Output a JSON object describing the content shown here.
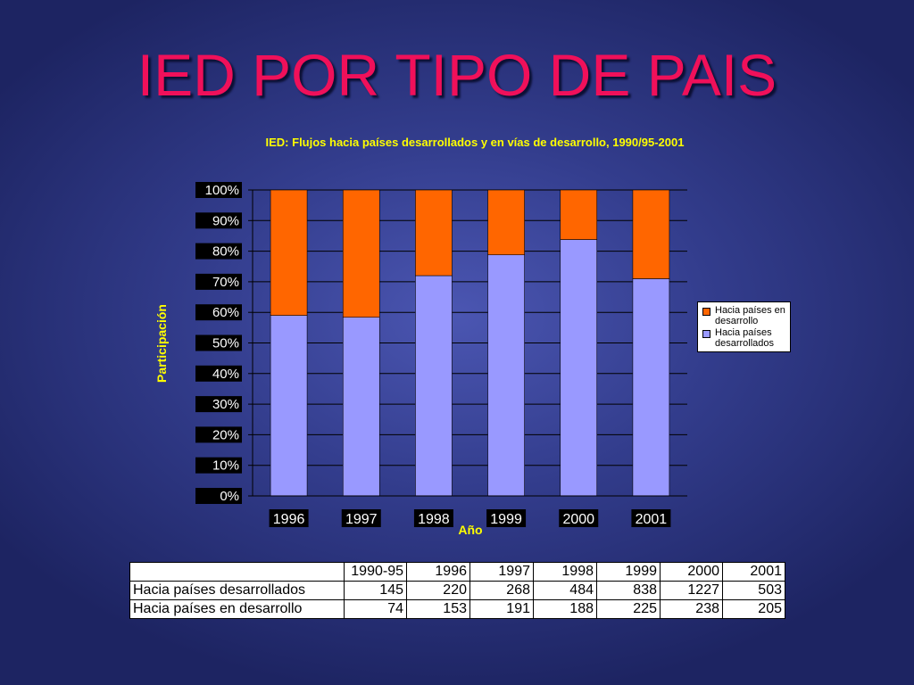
{
  "slide": {
    "title": "IED POR TIPO DE PAIS"
  },
  "chart_data": {
    "type": "bar",
    "stacked": "percent",
    "title": "IED: Flujos hacia países desarrollados y en vías de desarrollo, 1990/95-2001",
    "xlabel": "Año",
    "ylabel": "Participación",
    "categories": [
      "1996",
      "1997",
      "1998",
      "1999",
      "2000",
      "2001"
    ],
    "series": [
      {
        "name": "Hacia países desarrollados",
        "color": "#9999ff",
        "values": [
          59,
          58.4,
          72,
          78.8,
          83.8,
          71
        ]
      },
      {
        "name": "Hacia países en desarrollo",
        "color": "#ff6600",
        "values": [
          41,
          41.6,
          28,
          21.2,
          16.2,
          29
        ]
      }
    ],
    "yticks": [
      "0%",
      "10%",
      "20%",
      "30%",
      "40%",
      "50%",
      "60%",
      "70%",
      "80%",
      "90%",
      "100%"
    ],
    "ylim": [
      0,
      100
    ],
    "grid": true,
    "legend_position": "right",
    "legend": [
      {
        "label": "Hacia países en desarrollo",
        "color": "#ff6600"
      },
      {
        "label": "Hacia países desarrollados",
        "color": "#9999ff"
      }
    ]
  },
  "table": {
    "headers": [
      "",
      "1990-95",
      "1996",
      "1997",
      "1998",
      "1999",
      "2000",
      "2001"
    ],
    "rows": [
      {
        "label": "Hacia países desarrollados",
        "values": [
          "145",
          "220",
          "268",
          "484",
          "838",
          "1227",
          "503"
        ]
      },
      {
        "label": "Hacia países en desarrollo",
        "values": [
          "74",
          "153",
          "191",
          "188",
          "225",
          "238",
          "205"
        ]
      }
    ]
  }
}
